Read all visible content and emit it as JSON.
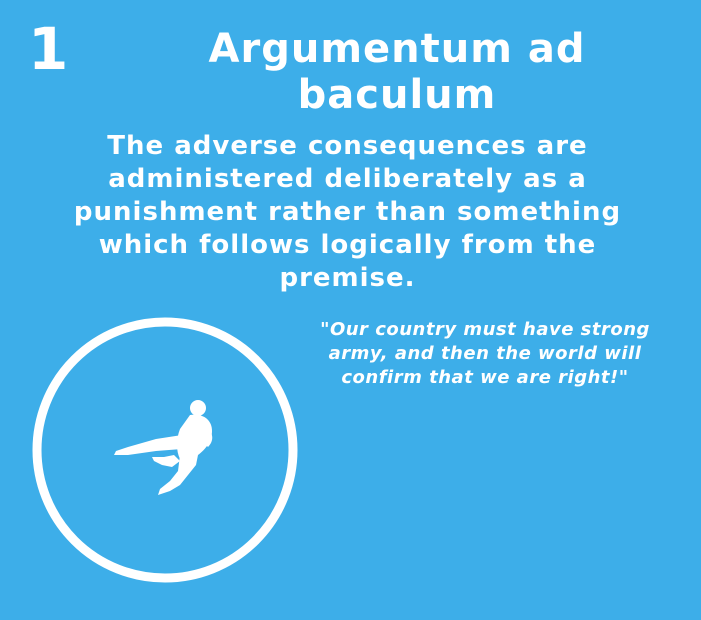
{
  "theme": {
    "background": "#3daee9",
    "foreground": "#ffffff"
  },
  "card": {
    "number": "1",
    "title_line1": "Argumentum ad",
    "title_line2": "baculum",
    "definition": "The adverse consequences are administered deliberately as a punishment rather than something which follows logically from the premise.",
    "quote": "\"Our country must have strong army, and then the world will confirm that we are right!\"",
    "illustration": {
      "icon": "flying-kick-silhouette-icon"
    }
  }
}
